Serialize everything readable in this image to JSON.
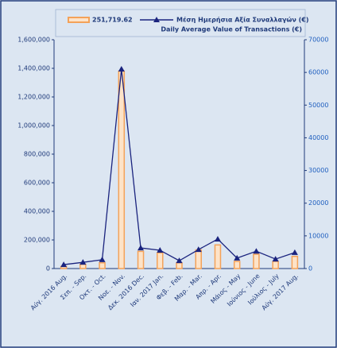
{
  "chart_data": {
    "type": "bar-line",
    "categories": [
      "Αύγ. 2016 Aug.",
      "Σεπ. - Sep.",
      "Οκτ. - Oct.",
      "Νοε. - Nov.",
      "Δεκ. 2016 Dec.",
      "Ιαν. 2017 Jan.",
      "Φεβ. - Feb.",
      "Μαρ. - Mar.",
      "Απρ. - Apr.",
      "Μάιος - May",
      "Ιούνιος - June",
      "Ιούλιος - July",
      "Αύγ. 2017 Aug."
    ],
    "series": [
      {
        "name": "251,719.62",
        "type": "bar",
        "color": "#f4a259",
        "values": [
          15000,
          30000,
          40000,
          1380000,
          120000,
          110000,
          40000,
          130000,
          165000,
          50000,
          100000,
          50000,
          85000
        ]
      },
      {
        "name": "Μέση Ημερήσια Αξία Συναλλαγών (€)",
        "name_en": "Daily Average Value of Transactions (€)",
        "type": "line",
        "axis": "y2",
        "color": "#1a237e",
        "values": [
          1200,
          1900,
          2700,
          61000,
          6300,
          5600,
          2400,
          5800,
          9000,
          3200,
          5300,
          2900,
          4900
        ]
      }
    ],
    "ylim": [
      0,
      1600000
    ],
    "yticks": [
      0,
      {
        "value": 200000,
        "label": "200,000"
      },
      {
        "value": 400000,
        "label": "400,000"
      },
      {
        "value": 600000,
        "label": "600,000"
      },
      {
        "value": 800000,
        "label": "800,000"
      },
      {
        "value": 1000000,
        "label": "1,000,000"
      },
      {
        "value": 1200000,
        "label": "1,200,000"
      },
      {
        "value": 1400000,
        "label": "1,400,000"
      },
      {
        "value": 1600000,
        "label": "1,600,000"
      }
    ],
    "y2lim": [
      0,
      70000
    ],
    "y2ticks": [
      0,
      10000,
      20000,
      30000,
      40000,
      50000,
      60000,
      70000
    ],
    "legend": "top"
  }
}
